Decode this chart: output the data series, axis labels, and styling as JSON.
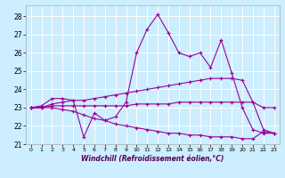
{
  "title": "",
  "xlabel": "Windchill (Refroidissement éolien,°C)",
  "bg_color": "#cceeff",
  "line_color": "#990099",
  "grid_color": "#ffffff",
  "xlim": [
    -0.5,
    23.5
  ],
  "ylim": [
    21.0,
    28.6
  ],
  "yticks": [
    21,
    22,
    23,
    24,
    25,
    26,
    27,
    28
  ],
  "xticks": [
    0,
    1,
    2,
    3,
    4,
    5,
    6,
    7,
    8,
    9,
    10,
    11,
    12,
    13,
    14,
    15,
    16,
    17,
    18,
    19,
    20,
    21,
    22,
    23
  ],
  "lines": [
    {
      "x": [
        0,
        1,
        2,
        3,
        4,
        5,
        6,
        7,
        8,
        9,
        10,
        11,
        12,
        13,
        14,
        15,
        16,
        17,
        18,
        19,
        20,
        21,
        22,
        23
      ],
      "y": [
        23.0,
        23.1,
        23.5,
        23.5,
        23.4,
        21.4,
        22.7,
        22.3,
        22.5,
        23.3,
        26.0,
        27.3,
        28.1,
        27.1,
        26.0,
        25.8,
        26.0,
        25.2,
        26.7,
        24.9,
        23.0,
        21.8,
        21.6,
        21.6
      ]
    },
    {
      "x": [
        0,
        1,
        2,
        3,
        4,
        5,
        6,
        7,
        8,
        9,
        10,
        11,
        12,
        13,
        14,
        15,
        16,
        17,
        18,
        19,
        20,
        21,
        22,
        23
      ],
      "y": [
        23.0,
        23.0,
        23.2,
        23.3,
        23.4,
        23.4,
        23.5,
        23.6,
        23.7,
        23.8,
        23.9,
        24.0,
        24.1,
        24.2,
        24.3,
        24.4,
        24.5,
        24.6,
        24.6,
        24.6,
        24.5,
        23.3,
        23.0,
        23.0
      ]
    },
    {
      "x": [
        0,
        1,
        2,
        3,
        4,
        5,
        6,
        7,
        8,
        9,
        10,
        11,
        12,
        13,
        14,
        15,
        16,
        17,
        18,
        19,
        20,
        21,
        22,
        23
      ],
      "y": [
        23.0,
        23.0,
        23.1,
        23.1,
        23.1,
        23.1,
        23.1,
        23.1,
        23.1,
        23.1,
        23.2,
        23.2,
        23.2,
        23.2,
        23.3,
        23.3,
        23.3,
        23.3,
        23.3,
        23.3,
        23.3,
        23.3,
        21.8,
        21.6
      ]
    },
    {
      "x": [
        0,
        1,
        2,
        3,
        4,
        5,
        6,
        7,
        8,
        9,
        10,
        11,
        12,
        13,
        14,
        15,
        16,
        17,
        18,
        19,
        20,
        21,
        22,
        23
      ],
      "y": [
        23.0,
        23.0,
        23.0,
        22.9,
        22.8,
        22.6,
        22.4,
        22.3,
        22.1,
        22.0,
        21.9,
        21.8,
        21.7,
        21.6,
        21.6,
        21.5,
        21.5,
        21.4,
        21.4,
        21.4,
        21.3,
        21.3,
        21.7,
        21.6
      ]
    }
  ]
}
